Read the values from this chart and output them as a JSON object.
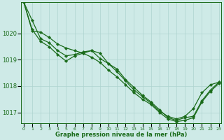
{
  "title": "Graphe pression niveau de la mer (hPa)",
  "xlabel_ticks": [
    0,
    1,
    2,
    3,
    4,
    5,
    6,
    7,
    8,
    9,
    10,
    11,
    12,
    13,
    14,
    15,
    16,
    17,
    18,
    19,
    20,
    21,
    22,
    23
  ],
  "ylim": [
    1016.6,
    1021.2
  ],
  "yticks": [
    1017,
    1018,
    1019,
    1020
  ],
  "xlim": [
    -0.3,
    23.3
  ],
  "bg_color": "#ceeae7",
  "grid_color": "#aed4d0",
  "line_color": "#1a6b1a",
  "marker": "D",
  "markersize": 2.2,
  "linewidth": 0.9,
  "series": [
    [
      1021.2,
      1020.5,
      1019.8,
      1019.65,
      1019.35,
      1019.15,
      1019.2,
      1019.3,
      1019.35,
      1019.25,
      1018.85,
      1018.55,
      1018.2,
      1017.85,
      1017.6,
      1017.35,
      1017.05,
      1016.85,
      1016.75,
      1016.85,
      1017.15,
      1017.75,
      1018.05,
      1018.15
    ],
    [
      1021.2,
      1020.15,
      1019.7,
      1019.5,
      1019.2,
      1018.95,
      1019.15,
      1019.25,
      1019.35,
      1019.05,
      1018.85,
      1018.65,
      1018.25,
      1017.95,
      1017.65,
      1017.4,
      1017.1,
      1016.8,
      1016.7,
      1016.8,
      1016.85,
      1017.45,
      1017.85,
      1018.15
    ],
    [
      1021.2,
      1020.1,
      1020.05,
      1019.85,
      1019.6,
      1019.45,
      1019.35,
      1019.25,
      1019.1,
      1018.9,
      1018.6,
      1018.35,
      1018.05,
      1017.75,
      1017.5,
      1017.3,
      1017.0,
      1016.75,
      1016.65,
      1016.7,
      1016.8,
      1017.4,
      1017.8,
      1018.1
    ]
  ]
}
